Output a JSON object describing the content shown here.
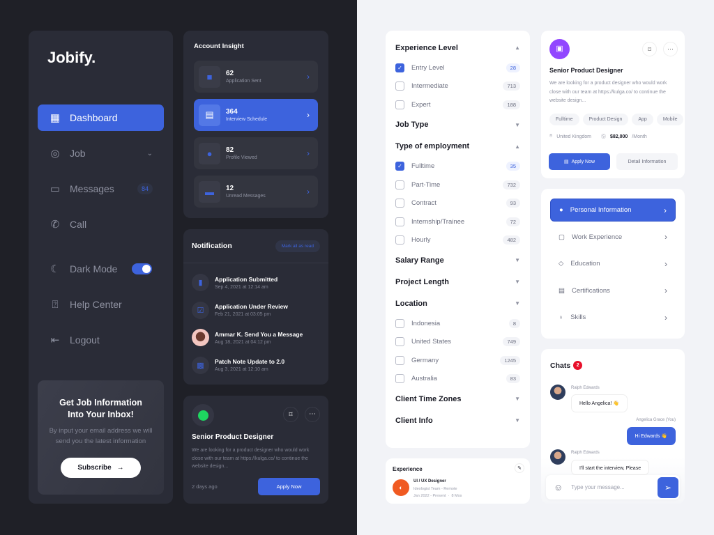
{
  "sidebar": {
    "logo": "Jobify.",
    "items": [
      {
        "label": "Dashboard",
        "icon": "grid-icon",
        "active": true
      },
      {
        "label": "Job",
        "icon": "compass-icon",
        "has_chevron": true
      },
      {
        "label": "Messages",
        "icon": "chat-icon",
        "badge": "84"
      },
      {
        "label": "Call",
        "icon": "phone-icon"
      },
      {
        "label": "Dark Mode",
        "icon": "moon-icon",
        "toggle": true
      },
      {
        "label": "Help Center",
        "icon": "help-icon"
      },
      {
        "label": "Logout",
        "icon": "logout-icon"
      }
    ],
    "promo": {
      "title": "Get Job Information Into Your Inbox!",
      "text": "By input your email address we will send you the latest information",
      "button": "Subscribe"
    }
  },
  "insight": {
    "title": "Account Insight",
    "items": [
      {
        "value": "62",
        "label": "Application Sent",
        "icon": "briefcase-icon"
      },
      {
        "value": "364",
        "label": "Interview Schedule",
        "icon": "calendar-icon",
        "active": true
      },
      {
        "value": "82",
        "label": "Profile Viewed",
        "icon": "user-icon"
      },
      {
        "value": "12",
        "label": "Unread Messages",
        "icon": "message-icon"
      }
    ]
  },
  "notifications": {
    "title": "Notification",
    "mark_all": "Mark all as read",
    "items": [
      {
        "title": "Application Submitted",
        "date": "Sep 4, 2021 at 12:14 am",
        "icon": "file-icon"
      },
      {
        "title": "Application Under Review",
        "date": "Feb 21, 2021 at 03:05 pm",
        "icon": "review-icon"
      },
      {
        "title": "Ammar K. Send You a Message",
        "date": "Aug 18, 2021 at 04:12 pm",
        "icon": "avatar"
      },
      {
        "title": "Patch Note Update to 2.0",
        "date": "Aug 3, 2021 at 12:10 am",
        "icon": "note-icon"
      }
    ]
  },
  "dark_job": {
    "title": "Senior Product Designer",
    "desc": "We are looking for a product designer who would work close with our team at https://kulga.co/ to continue the website design...",
    "posted": "2 days ago",
    "apply": "Apply Now"
  },
  "filters": [
    {
      "title": "Experience Level",
      "open": true,
      "options": [
        {
          "label": "Entry Level",
          "count": "28",
          "checked": true
        },
        {
          "label": "Intermediate",
          "count": "713"
        },
        {
          "label": "Expert",
          "count": "188"
        }
      ]
    },
    {
      "title": "Job Type",
      "open": false
    },
    {
      "title": "Type of employment",
      "open": true,
      "options": [
        {
          "label": "Fulltime",
          "count": "35",
          "checked": true
        },
        {
          "label": "Part-Time",
          "count": "732"
        },
        {
          "label": "Contract",
          "count": "93"
        },
        {
          "label": "Internship/Trainee",
          "count": "72"
        },
        {
          "label": "Hourly",
          "count": "482"
        }
      ]
    },
    {
      "title": "Salary Range",
      "open": false
    },
    {
      "title": "Project Length",
      "open": false
    },
    {
      "title": "Location",
      "open": false,
      "options": [
        {
          "label": "Indonesia",
          "count": "8"
        },
        {
          "label": "United States",
          "count": "749"
        },
        {
          "label": "Germany",
          "count": "1245"
        },
        {
          "label": "Australia",
          "count": "83"
        }
      ]
    },
    {
      "title": "Client Time Zones",
      "open": false
    },
    {
      "title": "Client Info",
      "open": false
    }
  ],
  "experience": {
    "title": "Experience",
    "role": "UI / UX Designer",
    "company": "Ideologist Team - Remote",
    "period": "Jan 2022 - Present",
    "duration": "8 Mos"
  },
  "light_job": {
    "title": "Senior Product Designer",
    "desc": "We are looking for a product designer who would work close with our team at https://kulga.co/ to continue the website design...",
    "tags": [
      "Fulltime",
      "Product Design",
      "App",
      "Mobile"
    ],
    "location": "United Kingdom",
    "salary": "$82,000",
    "salary_unit": "/Month",
    "apply": "Apply Now",
    "detail": "Detail Information"
  },
  "profile_menu": [
    {
      "label": "Personal Information",
      "icon": "user-icon",
      "active": true
    },
    {
      "label": "Work Experience",
      "icon": "briefcase-icon"
    },
    {
      "label": "Education",
      "icon": "graduation-cap-icon"
    },
    {
      "label": "Certifications",
      "icon": "certificate-icon"
    },
    {
      "label": "Skills",
      "icon": "badge-icon"
    }
  ],
  "chats": {
    "title": "Chats",
    "badge": "2",
    "messages": [
      {
        "sender": "Ralph Edwards",
        "text": "Hello Angelica! 👋",
        "mine": false
      },
      {
        "sender": "Angelica Grace (You)",
        "text": "Hi Edwards 👋",
        "mine": true
      },
      {
        "sender": "Ralph Edwards",
        "text": "I'll start the interview, Please",
        "mine": false
      }
    ],
    "placeholder": "Type your message..."
  },
  "colors": {
    "accent": "#3d63dd",
    "dark_bg": "#1f2027",
    "dark_panel": "#2a2c37",
    "light_bg": "#f2f3f7"
  }
}
